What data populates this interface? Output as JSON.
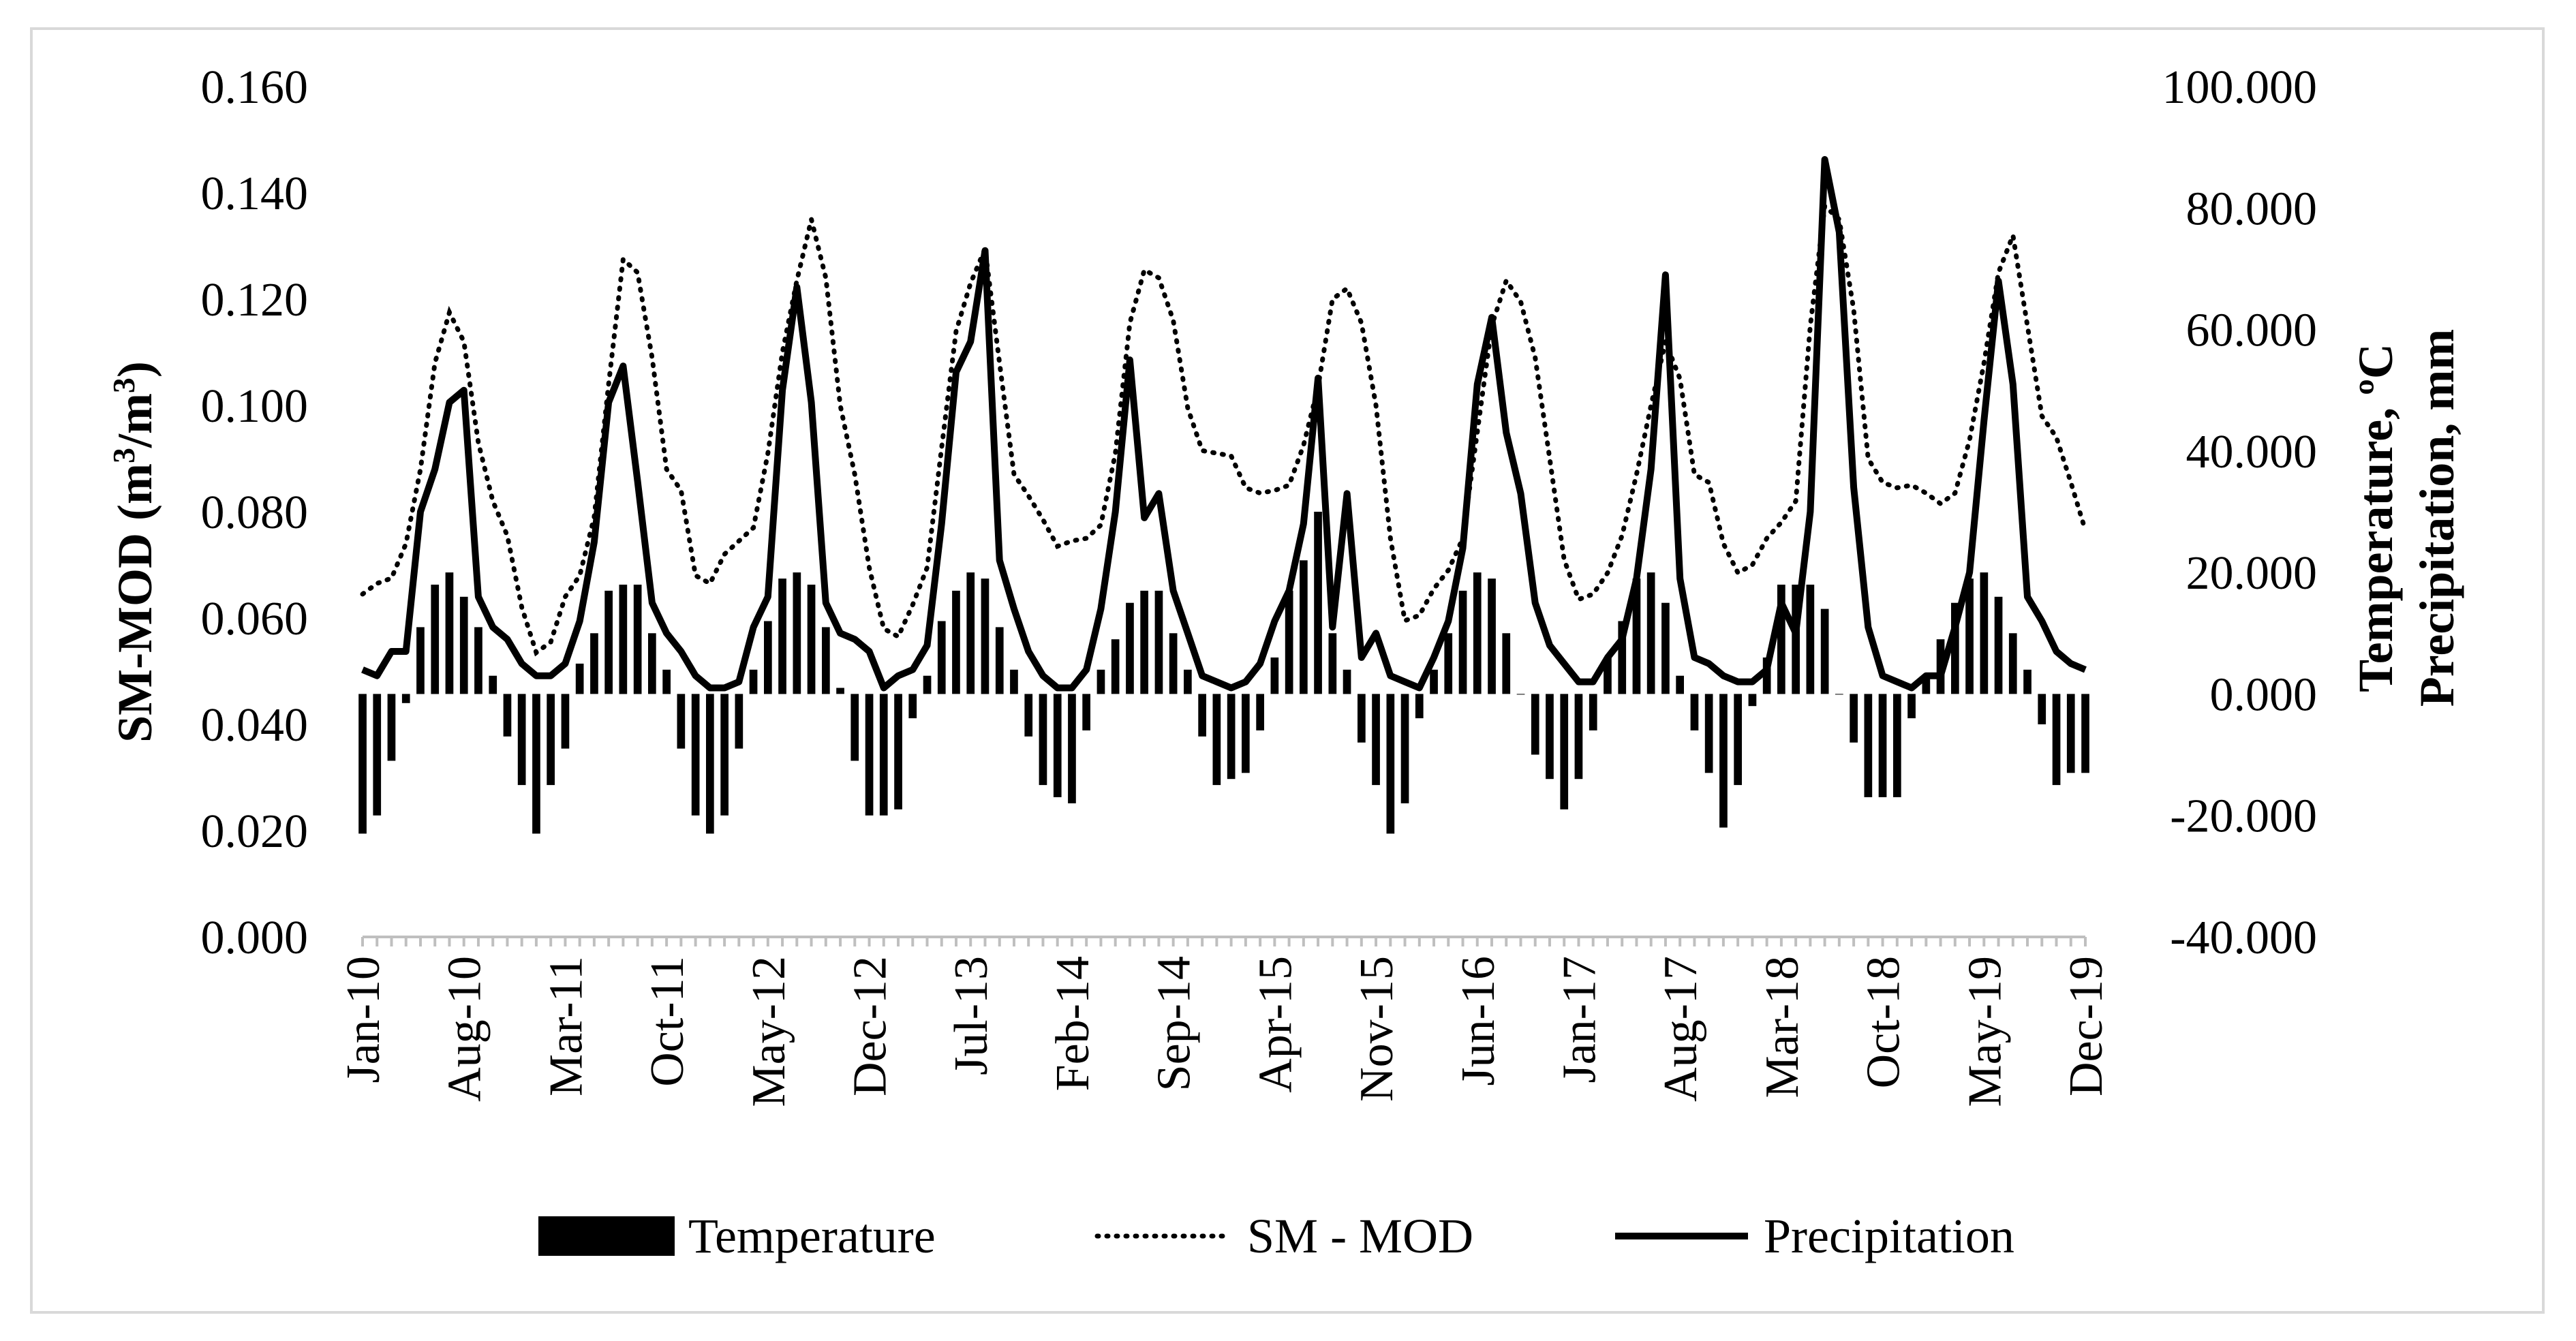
{
  "chart_data": {
    "type": "bar+line",
    "title": "",
    "grid": false,
    "legend_position": "bottom",
    "left_axis": {
      "label": "SM-MOD (m³/m³)",
      "label_parts": [
        "SM-MOD (m",
        "3",
        "/m",
        "3",
        ")"
      ],
      "range": [
        0,
        0.16
      ],
      "ticks": [
        "0.000",
        "0.020",
        "0.040",
        "0.060",
        "0.080",
        "0.100",
        "0.120",
        "0.140",
        "0.160"
      ]
    },
    "right_axis": {
      "label_lines": [
        "Temperature, ºC",
        "Precipitation, mm"
      ],
      "range": [
        -40,
        100
      ],
      "ticks": [
        "-40.000",
        "-20.000",
        "0.000",
        "20.000",
        "40.000",
        "60.000",
        "80.000",
        "100.000"
      ]
    },
    "x_labels": [
      "Jan-10",
      "Aug-10",
      "Mar-11",
      "Oct-11",
      "May-12",
      "Dec-12",
      "Jul-13",
      "Feb-14",
      "Sep-14",
      "Apr-15",
      "Nov-15",
      "Jun-16",
      "Jan-17",
      "Aug-17",
      "Mar-18",
      "Oct-18",
      "May-19",
      "Dec-19"
    ],
    "x_months": 120,
    "series": [
      {
        "name": "Temperature",
        "type": "bar",
        "axis": "right",
        "color": "#000000",
        "values": [
          -23,
          -20,
          -11,
          -1.5,
          11,
          18,
          20,
          16,
          11,
          3,
          -7,
          -15,
          -23,
          -15,
          -9,
          5,
          10,
          17,
          18,
          18,
          10,
          4,
          -9,
          -20,
          -23,
          -20,
          -9,
          4,
          12,
          19,
          20,
          18,
          11,
          1,
          -11,
          -20,
          -20,
          -19,
          -4,
          3,
          12,
          17,
          20,
          19,
          11,
          4,
          -7,
          -15,
          -17,
          -18,
          -6,
          4,
          9,
          15,
          17,
          17,
          10,
          4,
          -7,
          -15,
          -14,
          -13,
          -6,
          6,
          17,
          22,
          30,
          10,
          4,
          -8,
          -15,
          -23,
          -18,
          -4,
          4,
          10,
          17,
          20,
          19,
          10,
          0,
          -10,
          -14,
          -19,
          -14,
          -6,
          6,
          12,
          19,
          20,
          15,
          3,
          -6,
          -13,
          -22,
          -15,
          -2,
          6,
          18,
          18,
          18,
          14,
          0,
          -8,
          -17,
          -17,
          -17,
          -4,
          3,
          9,
          15,
          19,
          20,
          16,
          10,
          4,
          -5,
          -15,
          -13,
          -13
        ]
      },
      {
        "name": "SM - MOD",
        "type": "line",
        "style": "dotted",
        "axis": "left",
        "color": "#000000",
        "values": [
          0.0645,
          0.0665,
          0.0675,
          0.074,
          0.088,
          0.108,
          0.1175,
          0.112,
          0.093,
          0.082,
          0.0755,
          0.062,
          0.0535,
          0.0555,
          0.064,
          0.068,
          0.079,
          0.104,
          0.1275,
          0.125,
          0.109,
          0.088,
          0.084,
          0.068,
          0.0665,
          0.072,
          0.0745,
          0.077,
          0.091,
          0.11,
          0.1235,
          0.135,
          0.124,
          0.1,
          0.087,
          0.0695,
          0.058,
          0.0565,
          0.0625,
          0.0695,
          0.092,
          0.114,
          0.123,
          0.1295,
          0.108,
          0.087,
          0.083,
          0.0785,
          0.0735,
          0.0745,
          0.075,
          0.0775,
          0.091,
          0.1155,
          0.1255,
          0.124,
          0.116,
          0.0995,
          0.0915,
          0.091,
          0.0905,
          0.0845,
          0.0835,
          0.084,
          0.085,
          0.0925,
          0.1035,
          0.12,
          0.122,
          0.1155,
          0.1,
          0.075,
          0.0595,
          0.0605,
          0.0655,
          0.069,
          0.075,
          0.095,
          0.115,
          0.1235,
          0.1195,
          0.109,
          0.09,
          0.071,
          0.0635,
          0.0645,
          0.0685,
          0.0755,
          0.087,
          0.1,
          0.112,
          0.105,
          0.087,
          0.0855,
          0.074,
          0.0685,
          0.07,
          0.075,
          0.078,
          0.082,
          0.115,
          0.1375,
          0.135,
          0.118,
          0.09,
          0.0855,
          0.0845,
          0.085,
          0.0835,
          0.0815,
          0.0835,
          0.0935,
          0.108,
          0.125,
          0.132,
          0.115,
          0.098,
          0.094,
          0.0855,
          0.0765
        ]
      },
      {
        "name": "Precipitation",
        "type": "line",
        "style": "solid",
        "axis": "right",
        "color": "#000000",
        "values": [
          4,
          3,
          7,
          7,
          30,
          37,
          48,
          50,
          16,
          11,
          9,
          5,
          3,
          3,
          5,
          12,
          25,
          48,
          54,
          35,
          15,
          10,
          7,
          3,
          1,
          1,
          2,
          11,
          16,
          50,
          67,
          48,
          15,
          10,
          9,
          7,
          1,
          3,
          4,
          8,
          28,
          53,
          58,
          73,
          22,
          14,
          7,
          3,
          1,
          1,
          4,
          14,
          30,
          55,
          29,
          33,
          17,
          10,
          3,
          2,
          1,
          2,
          5,
          12,
          17,
          28,
          52,
          11,
          33,
          6,
          10,
          3,
          2,
          1,
          6,
          12,
          24,
          51,
          62,
          43,
          33,
          15,
          8,
          5,
          2,
          2,
          6,
          9,
          19,
          37,
          69,
          19,
          6,
          5,
          3,
          2,
          2,
          4,
          15,
          10,
          30,
          88,
          76,
          34,
          11,
          3,
          2,
          1,
          3,
          3,
          11,
          20,
          45,
          68,
          51,
          16,
          12,
          7,
          5,
          4
        ]
      }
    ]
  },
  "legend": {
    "items": [
      {
        "label": "Temperature",
        "style": "bar"
      },
      {
        "label": "SM - MOD",
        "style": "dotted"
      },
      {
        "label": "Precipitation",
        "style": "solid"
      }
    ]
  }
}
